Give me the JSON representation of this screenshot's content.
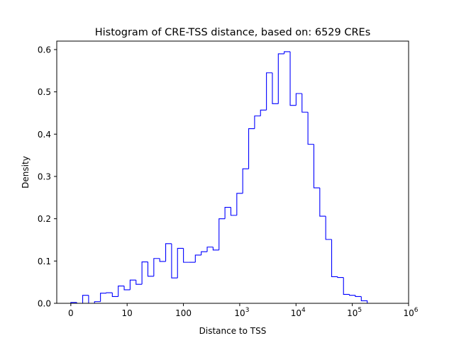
{
  "chart_data": {
    "type": "histogram",
    "title": "Histogram of CRE-TSS distance, based on: 6529 CREs",
    "xlabel": "Distance to TSS",
    "ylabel": "Density",
    "x_scale": "symlog",
    "xlim": [
      -0.25,
      6.0
    ],
    "ylim": [
      0,
      0.62
    ],
    "grid": false,
    "line_color": "#0000ff",
    "x_ticks": [
      {
        "value": 0,
        "label": "0"
      },
      {
        "value": 1,
        "label": "10"
      },
      {
        "value": 2,
        "label": "100"
      },
      {
        "value": 3,
        "label": "10",
        "sup": "3"
      },
      {
        "value": 4,
        "label": "10",
        "sup": "4"
      },
      {
        "value": 5,
        "label": "10",
        "sup": "5"
      },
      {
        "value": 6,
        "label": "10",
        "sup": "6"
      }
    ],
    "y_ticks": [
      {
        "value": 0.0,
        "label": "0.0"
      },
      {
        "value": 0.1,
        "label": "0.1"
      },
      {
        "value": 0.2,
        "label": "0.2"
      },
      {
        "value": 0.3,
        "label": "0.3"
      },
      {
        "value": 0.4,
        "label": "0.4"
      },
      {
        "value": 0.5,
        "label": "0.5"
      },
      {
        "value": 0.6,
        "label": "0.6"
      }
    ],
    "bin_start": 0.0,
    "bin_width": 0.1053,
    "values": [
      0.002,
      0.0,
      0.019,
      0.0,
      0.004,
      0.024,
      0.025,
      0.016,
      0.041,
      0.032,
      0.055,
      0.045,
      0.098,
      0.064,
      0.106,
      0.099,
      0.141,
      0.06,
      0.13,
      0.097,
      0.097,
      0.114,
      0.122,
      0.133,
      0.126,
      0.2,
      0.227,
      0.208,
      0.26,
      0.318,
      0.413,
      0.443,
      0.457,
      0.545,
      0.472,
      0.59,
      0.595,
      0.468,
      0.496,
      0.452,
      0.376,
      0.273,
      0.206,
      0.151,
      0.063,
      0.061,
      0.021,
      0.019,
      0.016,
      0.006
    ]
  }
}
